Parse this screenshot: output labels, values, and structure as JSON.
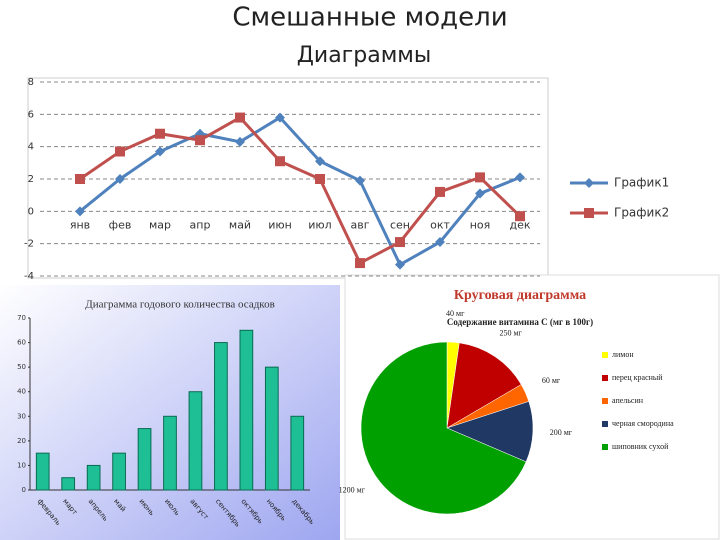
{
  "title": "Смешанные модели",
  "subtitle": "Диаграммы",
  "chart_data": [
    {
      "type": "line",
      "categories": [
        "янв",
        "фев",
        "мар",
        "апр",
        "май",
        "июн",
        "июл",
        "авг",
        "сен",
        "окт",
        "ноя",
        "дек"
      ],
      "series": [
        {
          "name": "График1",
          "color": "#4f81bd",
          "marker": "diamond",
          "values": [
            0,
            2,
            3.7,
            4.8,
            4.3,
            5.8,
            3.1,
            1.9,
            -3.3,
            -1.9,
            1.1,
            2.1
          ]
        },
        {
          "name": "График2",
          "color": "#c0504d",
          "marker": "square",
          "values": [
            2,
            3.7,
            4.8,
            4.4,
            5.8,
            3.1,
            2,
            -3.2,
            -1.9,
            1.2,
            2.1,
            -0.3
          ]
        }
      ],
      "ylim": [
        -4,
        8
      ],
      "yticks": [
        -4,
        -2,
        0,
        2,
        4,
        6,
        8
      ],
      "grid": true,
      "legend": "right"
    },
    {
      "type": "bar",
      "title": "Диаграмма годового количества осадков",
      "categories": [
        "февраль",
        "март",
        "апрель",
        "май",
        "июнь",
        "июль",
        "август",
        "сентябрь",
        "октябрь",
        "ноябрь",
        "декабрь"
      ],
      "values": [
        15,
        5,
        10,
        15,
        25,
        30,
        40,
        60,
        65,
        50,
        30
      ],
      "color": "#1fbf96",
      "ylim": [
        0,
        70
      ],
      "yticks": [
        0,
        10,
        20,
        30,
        40,
        50,
        60,
        70
      ]
    },
    {
      "type": "pie",
      "title": "Круговая диаграмма",
      "subtitle": "Содержание витамина С (мг в 100г)",
      "categories": [
        "лимон",
        "перец красный",
        "апельсин",
        "черная смородина",
        "шиповник сухой"
      ],
      "values": [
        40,
        250,
        60,
        200,
        1200
      ],
      "value_labels": [
        "40 мг",
        "250 мг",
        "60 мг",
        "200 мг",
        "1200 мг"
      ],
      "colors": [
        "#ffff00",
        "#c00000",
        "#ff6600",
        "#1f3864",
        "#00a000"
      ],
      "legend": "right"
    }
  ]
}
